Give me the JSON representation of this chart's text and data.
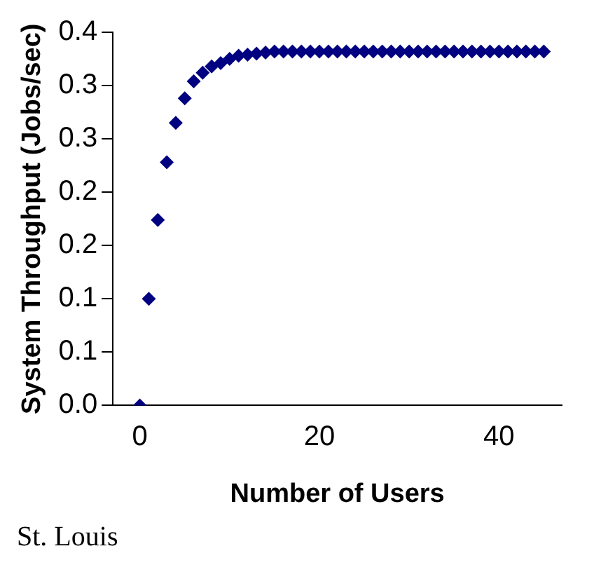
{
  "chart_data": {
    "type": "scatter",
    "xlabel": "Number of Users",
    "ylabel": "System Throughput (Jobs/sec)",
    "x": [
      0,
      1,
      2,
      3,
      4,
      5,
      6,
      7,
      8,
      9,
      10,
      11,
      12,
      13,
      14,
      15,
      16,
      17,
      18,
      19,
      20,
      21,
      22,
      23,
      24,
      25,
      26,
      27,
      28,
      29,
      30,
      31,
      32,
      33,
      34,
      35,
      36,
      37,
      38,
      39,
      40,
      41,
      42,
      43,
      44,
      45
    ],
    "series": [
      {
        "color": "#000080",
        "values": [
          0,
          0.1,
          0.174,
          0.228,
          0.265,
          0.288,
          0.304,
          0.312,
          0.318,
          0.321,
          0.325,
          0.328,
          0.329,
          0.33,
          0.331,
          0.332,
          0.332,
          0.332,
          0.332,
          0.332,
          0.332,
          0.332,
          0.332,
          0.332,
          0.332,
          0.332,
          0.332,
          0.332,
          0.332,
          0.332,
          0.332,
          0.332,
          0.332,
          0.332,
          0.332,
          0.332,
          0.332,
          0.332,
          0.332,
          0.332,
          0.332,
          0.332,
          0.332,
          0.332,
          0.332,
          0.332
        ]
      }
    ],
    "marker": "diamond",
    "xlim": [
      -3,
      47
    ],
    "xticks": [
      0,
      20,
      40
    ],
    "ylim": [
      0,
      0.35
    ],
    "yticks": [
      {
        "value": 0,
        "label": "0.0"
      },
      {
        "value": 0.05,
        "label": "0.1"
      },
      {
        "value": 0.1,
        "label": "0.1"
      },
      {
        "value": 0.15,
        "label": "0.2"
      },
      {
        "value": 0.2,
        "label": "0.2"
      },
      {
        "value": 0.25,
        "label": "0.3"
      },
      {
        "value": 0.3,
        "label": "0.3"
      },
      {
        "value": 0.35,
        "label": "0.4"
      }
    ],
    "grid": false,
    "legend": false,
    "annotations": [
      "St. Louis"
    ]
  }
}
